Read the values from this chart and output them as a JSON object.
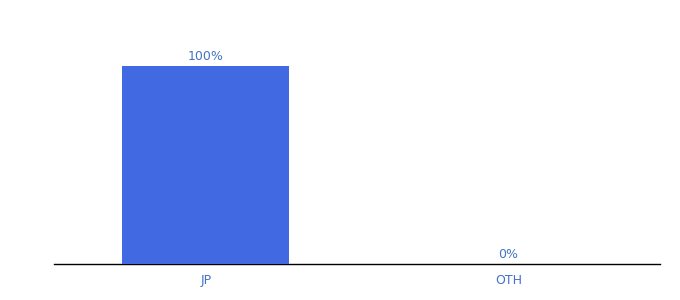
{
  "categories": [
    "JP",
    "OTH"
  ],
  "values": [
    100,
    0
  ],
  "bar_color": "#4169e1",
  "label_color": "#4472c4",
  "bar_labels": [
    "100%",
    "0%"
  ],
  "ylim": [
    0,
    115
  ],
  "tick_fontsize": 9,
  "label_fontsize": 9,
  "background_color": "#ffffff",
  "bar_width": 0.55
}
